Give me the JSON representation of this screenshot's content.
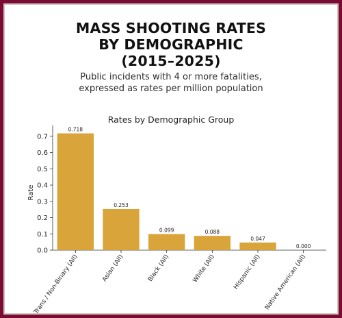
{
  "header": {
    "title_lines": [
      "MASS SHOOTING RATES",
      "BY DEMOGRAPHIC",
      "(2015–2025)"
    ],
    "subtitle_lines": [
      "Public incidents with 4 or more fatalities,",
      "expressed as rates per million population"
    ]
  },
  "colors": {
    "frame": "#7a0b35",
    "bar": "#d9a43a"
  },
  "chart_data": {
    "type": "bar",
    "title": "Rates by Demographic Group",
    "xlabel": "",
    "ylabel": "Rate",
    "categories": [
      "Trans / Non-Binary (All)",
      "Asian (All)",
      "Black (All)",
      "White (All)",
      "Hispanic (All)",
      "Native American (All)"
    ],
    "values": [
      0.718,
      0.253,
      0.099,
      0.088,
      0.047,
      0.0
    ],
    "value_labels": [
      "0.718",
      "0.253",
      "0.099",
      "0.088",
      "0.047",
      "0.000"
    ],
    "yticks": [
      "0.0",
      "0.1",
      "0.2",
      "0.3",
      "0.4",
      "0.5",
      "0.6",
      "0.7"
    ],
    "ylim": [
      0,
      0.75
    ],
    "grid": false
  }
}
